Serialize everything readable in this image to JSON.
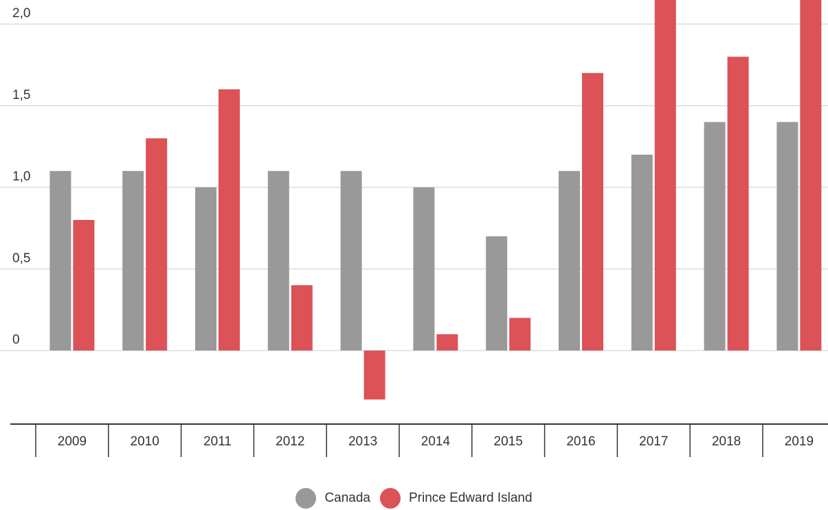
{
  "chart_data": {
    "type": "bar",
    "categories": [
      "2009",
      "2010",
      "2011",
      "2012",
      "2013",
      "2014",
      "2015",
      "2016",
      "2017",
      "2018",
      "2019"
    ],
    "series": [
      {
        "name": "Canada",
        "color": "#999999",
        "values": [
          1.1,
          1.1,
          1.0,
          1.1,
          1.1,
          1.0,
          0.7,
          1.1,
          1.2,
          1.4,
          1.4
        ]
      },
      {
        "name": "Prince Edward Island",
        "color": "#dc5257",
        "values": [
          0.8,
          1.3,
          1.6,
          0.4,
          -0.3,
          0.1,
          0.2,
          1.7,
          2.2,
          1.8,
          2.2
        ]
      }
    ],
    "yticks": [
      0,
      0.5,
      1.0,
      1.5,
      2.0
    ],
    "ytick_labels": [
      "0",
      "0,5",
      "1,0",
      "1,5",
      "2,0"
    ],
    "ylim": [
      -0.45,
      2.15
    ],
    "title": "",
    "xlabel": "",
    "ylabel": "",
    "grid": true,
    "legend_position": "bottom-center"
  },
  "legend": {
    "items": [
      {
        "label": "Canada",
        "color": "#999999"
      },
      {
        "label": "Prince Edward Island",
        "color": "#dc5257"
      }
    ]
  }
}
